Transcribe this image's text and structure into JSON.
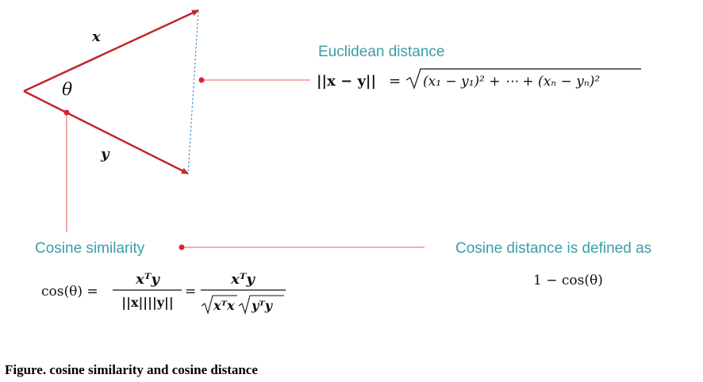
{
  "vectors": {
    "x_label": "x",
    "y_label": "y",
    "theta_label": "θ"
  },
  "euclidean": {
    "title": "Euclidean distance",
    "norm_lhs": "||x − y||",
    "equals": "=",
    "radicand": "(x₁ − y₁)² + ⋯ + (xₙ − yₙ)²"
  },
  "cosine_similarity": {
    "title": "Cosine similarity",
    "lhs": "cos(θ) =",
    "num1": "xᵀy",
    "den1": "||x||||y||",
    "equals": "=",
    "num2": "xᵀy",
    "den2_part1": "xᵀx",
    "den2_part2": "yᵀy"
  },
  "cosine_distance": {
    "title": "Cosine distance is defined as",
    "formula": "1 − cos(θ)"
  },
  "caption": "Figure. cosine similarity and cosine distance",
  "colors": {
    "vector_red": "#c0272d",
    "pointer_pink": "#f07a7d",
    "dot_red": "#e0212b",
    "dashed_blue": "#4a90d0",
    "label_teal": "#3a9ea5"
  }
}
